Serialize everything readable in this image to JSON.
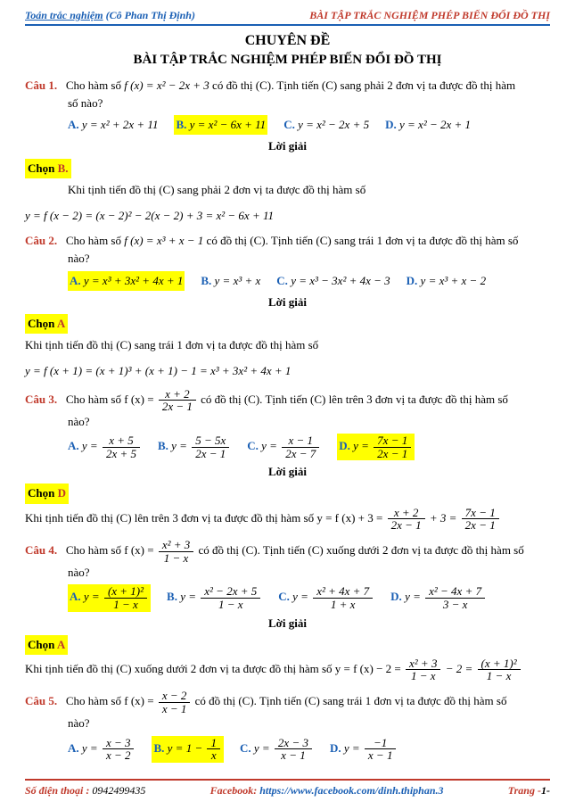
{
  "header": {
    "left_link": "Toán trắc nghiệm",
    "teacher": "(Cô Phan Thị Định)",
    "right": "BÀI TẬP TRẮC NGHIỆM PHÉP BIẾN ĐỔI ĐỒ THỊ"
  },
  "title": {
    "main": "CHUYÊN ĐỀ",
    "sub": "BÀI TẬP TRẮC NGHIỆM PHÉP BIẾN ĐỔI ĐỒ THỊ"
  },
  "questions": {
    "q1": {
      "label": "Câu 1.",
      "text_prefix": "Cho hàm số ",
      "func": "f (x) = x² − 2x + 3",
      "text_mid": " có đồ thị (C). Tịnh tiến (C) sang phải 2 đơn vị ta được đồ thị hàm",
      "text_suffix": "số nào?",
      "opts": {
        "A": "y = x² + 2x + 11",
        "B": "y = x² − 6x + 11",
        "C": "y = x² − 2x + 5",
        "D": "y = x² − 2x + 1"
      },
      "sol_head": "Lời giải",
      "chon": "Chọn B.",
      "explain1": "Khi tịnh tiến đồ thị (C) sang phải 2 đơn vị ta được đồ thị hàm số",
      "explain2": "y = f (x − 2) = (x − 2)² − 2(x − 2) + 3 = x² − 6x + 11"
    },
    "q2": {
      "label": "Câu 2.",
      "text_prefix": "Cho hàm số ",
      "func": "f (x) = x³ + x − 1",
      "text_mid": " có đồ thị (C). Tịnh tiến (C) sang trái 1 đơn vị ta được đồ thị hàm số",
      "text_suffix": "nào?",
      "opts": {
        "A": "y = x³ + 3x² + 4x + 1",
        "B": "y = x³ + x",
        "C": "y = x³ − 3x² + 4x − 3",
        "D": "y = x³ + x − 2"
      },
      "sol_head": "Lời giải",
      "chon": "Chọn A",
      "explain1": "Khi tịnh tiến đồ thị (C) sang trái 1 đơn vị ta được đồ thị hàm số",
      "explain2": "y = f (x + 1) = (x + 1)³ + (x + 1) − 1 = x³ + 3x² + 4x + 1"
    },
    "q3": {
      "label": "Câu 3.",
      "text": "Cho hàm số f (x) = ",
      "func_num": "x + 2",
      "func_den": "2x − 1",
      "text_mid": " có đồ thị (C). Tịnh tiến (C) lên trên 3 đơn vị ta được đồ thị hàm số",
      "text_suffix": "nào?",
      "opts": {
        "A_num": "x + 5",
        "A_den": "2x + 5",
        "B_num": "5 − 5x",
        "B_den": "2x − 1",
        "C_num": "x − 1",
        "C_den": "2x − 7",
        "D_num": "7x − 1",
        "D_den": "2x − 1"
      },
      "sol_head": "Lời giải",
      "chon": "Chọn D",
      "explain1": "Khi tịnh tiến đồ thị (C) lên trên 3 đơn vị ta được đồ thị hàm số y = f (x) + 3 = ",
      "explain_f1_num": "x + 2",
      "explain_f1_den": "2x − 1",
      "explain_mid": " + 3 = ",
      "explain_f2_num": "7x − 1",
      "explain_f2_den": "2x − 1"
    },
    "q4": {
      "label": "Câu 4.",
      "text": "Cho hàm số f (x) = ",
      "func_num": "x² + 3",
      "func_den": "1 − x",
      "text_mid": " có đồ thị (C). Tịnh tiến (C) xuống dưới 2 đơn vị ta được đồ thị hàm số",
      "text_suffix": "nào?",
      "opts": {
        "A_num": "(x + 1)²",
        "A_den": "1 − x",
        "B_num": "x² − 2x + 5",
        "B_den": "1 − x",
        "C_num": "x² + 4x + 7",
        "C_den": "1 + x",
        "D_num": "x² − 4x + 7",
        "D_den": "3 − x"
      },
      "sol_head": "Lời giải",
      "chon": "Chọn A",
      "explain1": "Khi tịnh tiến đồ thị (C) xuống dưới 2  đơn vị ta được đồ thị hàm số y = f (x) − 2 = ",
      "explain_f1_num": "x² + 3",
      "explain_f1_den": "1 − x",
      "explain_mid": " − 2 = ",
      "explain_f2_num": "(x + 1)²",
      "explain_f2_den": "1 − x"
    },
    "q5": {
      "label": "Câu 5.",
      "text": "Cho hàm số f (x) = ",
      "func_num": "x − 2",
      "func_den": "x − 1",
      "text_mid": " có đồ thị (C). Tịnh tiến (C) sang trái 1 đơn vị ta được đồ thị hàm số",
      "text_suffix": "nào?",
      "opts": {
        "A_num": "x − 3",
        "A_den": "x − 2",
        "B_pre": "y = 1 − ",
        "B_num": "1",
        "B_den": "x",
        "C_num": "2x − 3",
        "C_den": "x − 1",
        "D_pre": "y = ",
        "D_num": "−1",
        "D_den": "x − 1"
      }
    }
  },
  "footer": {
    "left_label": "Số điện thoại : ",
    "phone": "0942499435",
    "mid_label": "Facebook: ",
    "link": "https://www.facebook.com/dinh.thiphan.3",
    "right_label": "Trang -",
    "page": "1-"
  },
  "colors": {
    "blue": "#1a5fb4",
    "red": "#c0392b",
    "highlight": "#ffff00",
    "border_red": "#c0392b",
    "text": "#000000",
    "bg": "#ffffff"
  }
}
